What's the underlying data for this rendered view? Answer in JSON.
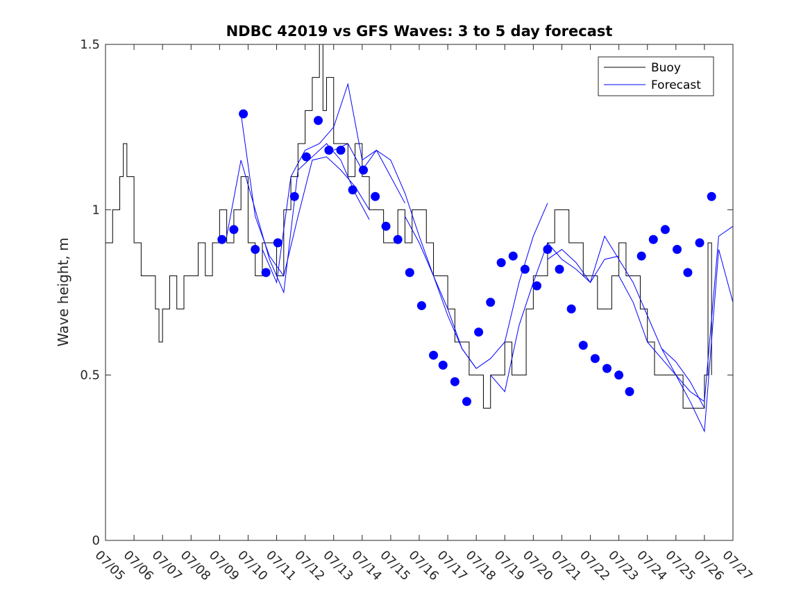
{
  "chart_data": {
    "type": "line",
    "title": "NDBC 42019 vs GFS Waves: 3 to 5 day forecast",
    "ylabel": "Wave height, m",
    "xlabel": "",
    "xlim": [
      "07/05",
      "07/27"
    ],
    "ylim": [
      0,
      1.5
    ],
    "yticks": [
      0,
      0.5,
      1,
      1.5
    ],
    "ytick_labels": [
      "0",
      "0.5",
      "1",
      "1.5"
    ],
    "xtick_labels": [
      "07/05",
      "07/06",
      "07/07",
      "07/08",
      "07/09",
      "07/10",
      "07/11",
      "07/12",
      "07/13",
      "07/14",
      "07/15",
      "07/16",
      "07/17",
      "07/18",
      "07/19",
      "07/20",
      "07/21",
      "07/22",
      "07/23",
      "07/24",
      "07/25",
      "07/26",
      "07/27"
    ],
    "legend": {
      "position": "top-right",
      "entries": [
        {
          "label": "Buoy",
          "color": "#000000"
        },
        {
          "label": "Forecast",
          "color": "#0000ff"
        }
      ]
    },
    "colors": {
      "buoy": "#000000",
      "forecast": "#0000ff",
      "axes": "#262626"
    },
    "buoy": {
      "name": "Buoy",
      "x": [
        "07/05 00:00",
        "07/05 06:00",
        "07/05 12:00",
        "07/05 15:00",
        "07/05 18:00",
        "07/06 00:00",
        "07/06 06:00",
        "07/06 12:00",
        "07/06 18:00",
        "07/06 21:00",
        "07/07 00:00",
        "07/07 06:00",
        "07/07 12:00",
        "07/07 18:00",
        "07/08 00:00",
        "07/08 06:00",
        "07/08 12:00",
        "07/08 18:00",
        "07/09 00:00",
        "07/09 06:00",
        "07/09 12:00",
        "07/09 18:00",
        "07/10 00:00",
        "07/10 06:00",
        "07/10 12:00",
        "07/10 18:00",
        "07/11 00:00",
        "07/11 06:00",
        "07/11 12:00",
        "07/11 18:00",
        "07/12 00:00",
        "07/12 06:00",
        "07/12 12:00",
        "07/12 15:00",
        "07/12 18:00",
        "07/13 00:00",
        "07/13 06:00",
        "07/13 12:00",
        "07/13 18:00",
        "07/14 00:00",
        "07/14 06:00",
        "07/14 12:00",
        "07/14 18:00",
        "07/15 00:00",
        "07/15 06:00",
        "07/15 12:00",
        "07/15 18:00",
        "07/16 00:00",
        "07/16 06:00",
        "07/16 12:00",
        "07/16 18:00",
        "07/17 00:00",
        "07/17 06:00",
        "07/17 12:00",
        "07/17 18:00",
        "07/18 00:00",
        "07/18 06:00",
        "07/18 12:00",
        "07/18 18:00",
        "07/19 00:00",
        "07/19 06:00",
        "07/19 12:00",
        "07/19 18:00",
        "07/20 00:00",
        "07/20 06:00",
        "07/20 12:00",
        "07/20 18:00",
        "07/21 00:00",
        "07/21 06:00",
        "07/21 12:00",
        "07/21 18:00",
        "07/22 00:00",
        "07/22 06:00",
        "07/22 12:00",
        "07/22 18:00",
        "07/23 00:00",
        "07/23 06:00",
        "07/23 12:00",
        "07/23 18:00",
        "07/24 00:00",
        "07/24 06:00",
        "07/24 12:00",
        "07/24 18:00",
        "07/25 00:00",
        "07/25 06:00",
        "07/25 12:00",
        "07/25 18:00",
        "07/26 00:00",
        "07/26 03:00",
        "07/26 06:00"
      ],
      "y": [
        0.9,
        1.0,
        1.1,
        1.2,
        1.1,
        0.9,
        0.8,
        0.8,
        0.7,
        0.6,
        0.7,
        0.8,
        0.7,
        0.8,
        0.8,
        0.9,
        0.8,
        0.9,
        1.0,
        0.9,
        1.0,
        1.1,
        0.9,
        0.8,
        0.9,
        0.9,
        0.8,
        1.0,
        1.1,
        1.2,
        1.3,
        1.4,
        1.5,
        1.3,
        1.4,
        1.2,
        1.2,
        1.1,
        1.2,
        1.1,
        1.0,
        1.0,
        0.9,
        0.9,
        1.0,
        0.9,
        1.0,
        1.0,
        0.9,
        0.8,
        0.8,
        0.7,
        0.6,
        0.6,
        0.5,
        0.5,
        0.4,
        0.5,
        0.5,
        0.6,
        0.5,
        0.5,
        0.7,
        0.8,
        0.8,
        0.9,
        1.0,
        1.0,
        0.9,
        0.9,
        0.8,
        0.8,
        0.7,
        0.7,
        0.8,
        0.9,
        0.8,
        0.8,
        0.7,
        0.6,
        0.5,
        0.5,
        0.5,
        0.5,
        0.4,
        0.4,
        0.4,
        0.5,
        0.9,
        0.5
      ]
    },
    "forecast_runs": [
      {
        "name": "Forecast",
        "x": [
          "07/09 18:00",
          "07/10 06:00",
          "07/10 18:00",
          "07/11 06:00",
          "07/11 18:00",
          "07/12 06:00",
          "07/12 18:00",
          "07/13 06:00",
          "07/13 18:00",
          "07/14 06:00"
        ],
        "y": [
          1.29,
          0.98,
          0.86,
          0.8,
          0.98,
          1.15,
          1.16,
          1.12,
          1.07,
          1.0
        ]
      },
      {
        "name": "Forecast",
        "x": [
          "07/09 06:00",
          "07/09 18:00",
          "07/10 06:00",
          "07/10 18:00",
          "07/11 06:00",
          "07/11 18:00",
          "07/12 06:00",
          "07/12 18:00",
          "07/13 06:00",
          "07/13 18:00",
          "07/14 06:00"
        ],
        "y": [
          0.92,
          1.15,
          1.0,
          0.85,
          0.75,
          1.12,
          1.16,
          1.2,
          1.15,
          1.05,
          0.97
        ]
      },
      {
        "name": "Forecast",
        "x": [
          "07/10 12:00",
          "07/11 00:00",
          "07/11 12:00",
          "07/12 00:00",
          "07/12 12:00",
          "07/13 00:00",
          "07/13 12:00",
          "07/14 00:00",
          "07/14 12:00",
          "07/15 00:00",
          "07/15 12:00"
        ],
        "y": [
          0.88,
          0.78,
          1.1,
          1.18,
          1.2,
          1.25,
          1.38,
          1.15,
          1.18,
          1.1,
          1.02
        ]
      },
      {
        "name": "Forecast",
        "x": [
          "07/13 00:00",
          "07/13 12:00",
          "07/14 00:00",
          "07/14 12:00",
          "07/15 00:00",
          "07/15 12:00",
          "07/16 00:00",
          "07/16 12:00",
          "07/17 00:00",
          "07/17 12:00",
          "07/18 00:00"
        ],
        "y": [
          1.18,
          1.2,
          1.12,
          1.18,
          1.15,
          1.05,
          0.92,
          0.8,
          0.68,
          0.58,
          0.52
        ]
      },
      {
        "name": "Forecast",
        "x": [
          "07/15 12:00",
          "07/16 00:00",
          "07/16 12:00",
          "07/17 00:00",
          "07/17 12:00",
          "07/18 00:00",
          "07/18 12:00",
          "07/19 00:00",
          "07/19 12:00",
          "07/20 00:00",
          "07/20 12:00"
        ],
        "y": [
          0.98,
          0.9,
          0.8,
          0.7,
          0.58,
          0.52,
          0.55,
          0.6,
          0.78,
          0.92,
          1.02
        ]
      },
      {
        "name": "Forecast",
        "x": [
          "07/18 12:00",
          "07/19 00:00",
          "07/19 12:00",
          "07/20 00:00",
          "07/20 12:00",
          "07/21 00:00",
          "07/21 12:00",
          "07/22 00:00",
          "07/22 12:00",
          "07/23 00:00"
        ],
        "y": [
          0.5,
          0.45,
          0.65,
          0.78,
          0.9,
          0.85,
          0.82,
          0.78,
          0.85,
          0.86
        ]
      },
      {
        "name": "Forecast",
        "x": [
          "07/20 12:00",
          "07/21 00:00",
          "07/21 12:00",
          "07/22 00:00",
          "07/22 12:00",
          "07/23 00:00",
          "07/23 12:00",
          "07/24 00:00",
          "07/24 12:00",
          "07/25 00:00",
          "07/25 12:00",
          "07/26 00:00"
        ],
        "y": [
          0.85,
          0.88,
          0.84,
          0.78,
          0.92,
          0.85,
          0.78,
          0.68,
          0.58,
          0.54,
          0.48,
          0.4
        ]
      },
      {
        "name": "Forecast",
        "x": [
          "07/23 00:00",
          "07/23 12:00",
          "07/24 00:00",
          "07/24 12:00",
          "07/25 00:00",
          "07/25 12:00",
          "07/26 00:00",
          "07/26 12:00",
          "07/27 00:00"
        ],
        "y": [
          0.8,
          0.72,
          0.6,
          0.55,
          0.5,
          0.45,
          0.42,
          0.92,
          0.95
        ]
      },
      {
        "name": "Forecast",
        "x": [
          "07/24 12:00",
          "07/25 00:00",
          "07/25 12:00",
          "07/26 00:00",
          "07/26 12:00",
          "07/27 00:00"
        ],
        "y": [
          0.58,
          0.5,
          0.42,
          0.33,
          0.88,
          0.72
        ]
      }
    ],
    "forecast_points": {
      "name": "Forecast",
      "x": [
        "07/09 02:00",
        "07/09 12:00",
        "07/09 20:00",
        "07/10 06:00",
        "07/10 15:00",
        "07/11 01:00",
        "07/11 15:00",
        "07/12 01:00",
        "07/12 11:00",
        "07/12 20:00",
        "07/13 06:00",
        "07/13 16:00",
        "07/14 01:00",
        "07/14 11:00",
        "07/14 20:00",
        "07/15 06:00",
        "07/15 16:00",
        "07/16 02:00",
        "07/16 12:00",
        "07/16 20:00",
        "07/17 06:00",
        "07/17 16:00",
        "07/18 02:00",
        "07/18 12:00",
        "07/18 21:00",
        "07/19 07:00",
        "07/19 17:00",
        "07/20 03:00",
        "07/20 12:00",
        "07/20 22:00",
        "07/21 08:00",
        "07/21 18:00",
        "07/22 04:00",
        "07/22 14:00",
        "07/23 00:00",
        "07/23 09:00",
        "07/23 19:00",
        "07/24 05:00",
        "07/24 15:00",
        "07/25 01:00",
        "07/25 10:00",
        "07/25 20:00",
        "07/26 06:00"
      ],
      "y": [
        0.91,
        0.94,
        1.29,
        0.88,
        0.81,
        0.9,
        1.04,
        1.16,
        1.27,
        1.18,
        1.18,
        1.06,
        1.12,
        1.04,
        0.95,
        0.91,
        0.81,
        0.71,
        0.56,
        0.53,
        0.48,
        0.42,
        0.63,
        0.72,
        0.84,
        0.86,
        0.82,
        0.77,
        0.88,
        0.82,
        0.7,
        0.59,
        0.55,
        0.52,
        0.5,
        0.45,
        0.86,
        0.91,
        0.94,
        0.88,
        0.81,
        0.9,
        1.04
      ]
    }
  }
}
